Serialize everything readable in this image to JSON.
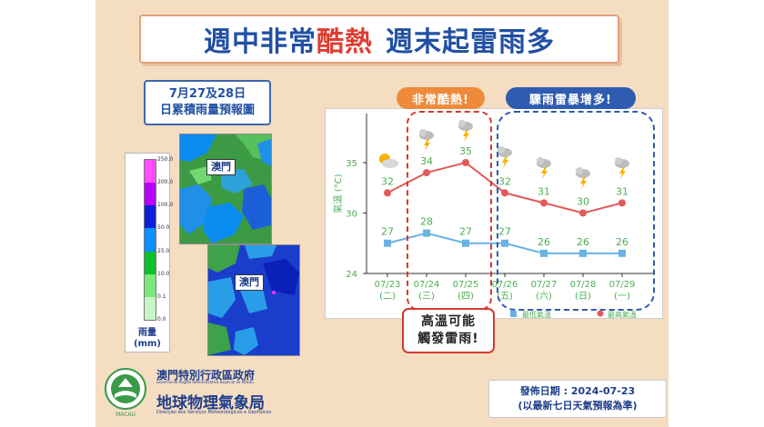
{
  "header": {
    "title_part1": "週中非常",
    "title_part2": "酷熱",
    "title_part3": "週末起雷雨多"
  },
  "rainfall": {
    "title_line1": "7月27及28日",
    "title_line2": "日累積雨量預報圖",
    "unit_line1": "雨量",
    "unit_line2": "(mm)",
    "map_label": "澳門",
    "colorbar": [
      {
        "label": "250.0",
        "color": "#ff4dff"
      },
      {
        "label": "200.0",
        "color": "#b800ff"
      },
      {
        "label": "100.0",
        "color": "#0b20d8"
      },
      {
        "label": "50.0",
        "color": "#0a90ff"
      },
      {
        "label": "25.0",
        "color": "#0dbf2a"
      },
      {
        "label": "10.0",
        "color": "#79e979"
      },
      {
        "label": "0.1",
        "color": "#c8f5c6"
      },
      {
        "label": "0.0",
        "color": "#ffffff"
      }
    ]
  },
  "annotations": {
    "hot_tag": "非常酷熱!",
    "storm_tag": "驟雨雷暴增多!",
    "warning_line1": "高溫可能",
    "warning_line2": "觸發雷雨!"
  },
  "chart_data": {
    "type": "line",
    "ylabel": "氣溫 (°C)",
    "ylim": [
      24,
      37
    ],
    "yticks": [
      24,
      30,
      35
    ],
    "categories": [
      "07/23",
      "07/24",
      "07/25",
      "07/26",
      "07/27",
      "07/28",
      "07/29"
    ],
    "weekdays": [
      "(二)",
      "(三)",
      "(四)",
      "(五)",
      "(六)",
      "(日)",
      "(一)"
    ],
    "weather_icons": [
      "sun-cloud-icon",
      "thunderstorm-icon",
      "thunderstorm-icon",
      "thunderstorm-icon",
      "thunderstorm-icon",
      "thunderstorm-icon",
      "thunderstorm-icon"
    ],
    "series": [
      {
        "name": "最低氣溫",
        "color": "#6ab2e4",
        "values": [
          27,
          28,
          27,
          27,
          26,
          26,
          26
        ]
      },
      {
        "name": "最高氣溫",
        "color": "#e25a5a",
        "values": [
          32,
          34,
          35,
          32,
          31,
          30,
          31
        ]
      }
    ],
    "legend": "bottom-right"
  },
  "footer": {
    "org_line1": "澳門特別行政區政府",
    "org_line2": "Governo da Região Administrativa Especial de Macau",
    "org_line3": "地球物理氣象局",
    "org_line4": "Direcção dos Serviços Meteorológicos e Geofísicos",
    "issue_line1": "發佈日期 : 2024-07-23",
    "issue_line2": "(以最新七日天氣預報為準)"
  },
  "colors": {
    "accent_blue": "#2150a3",
    "accent_red": "#e03c31",
    "background": "#f5ddc2"
  }
}
